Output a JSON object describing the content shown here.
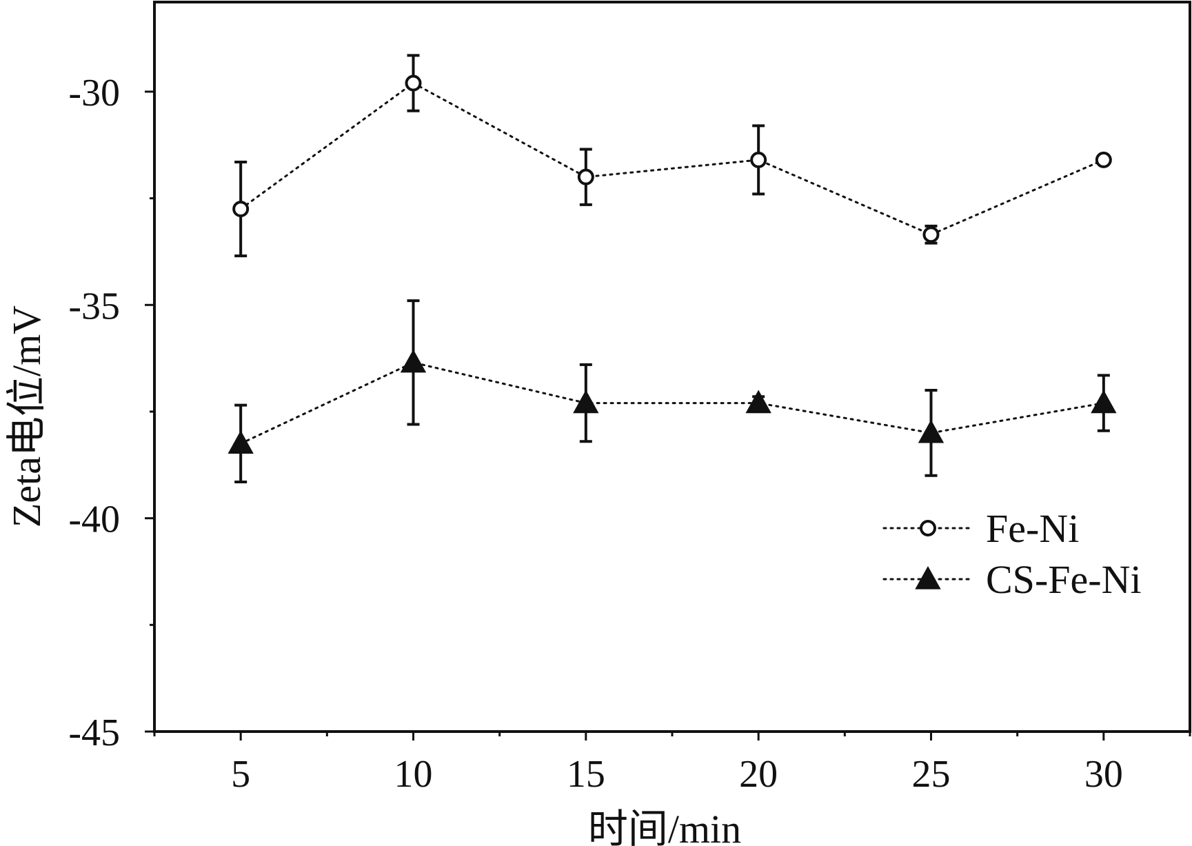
{
  "chart_data": {
    "type": "scatter",
    "title": "",
    "xlabel": "时间/min",
    "ylabel": "Zeta电位/mV",
    "xlim": [
      2.5,
      32.5
    ],
    "ylim": [
      -45,
      -27.9
    ],
    "x_ticks": [
      5,
      10,
      15,
      20,
      25,
      30
    ],
    "x_tick_labels": [
      "5",
      "10",
      "15",
      "20",
      "25",
      "30"
    ],
    "x_minor_ticks": [
      2.5,
      7.5,
      12.5,
      17.5,
      22.5,
      27.5,
      32.5
    ],
    "y_ticks": [
      -30,
      -35,
      -40,
      -45
    ],
    "y_tick_labels": [
      "-30",
      "-35",
      "-40",
      "-45"
    ],
    "y_minor_ticks": [
      -27.5,
      -32.5,
      -37.5,
      -42.5
    ],
    "grid": false,
    "legend_position": "lower-right",
    "series": [
      {
        "name": "Fe-Ni",
        "marker": "open-circle",
        "line_style": "dotted",
        "color": "#111111",
        "x": [
          5,
          10,
          15,
          20,
          25,
          30
        ],
        "y": [
          -32.75,
          -29.8,
          -32.0,
          -31.6,
          -33.35,
          -31.6
        ],
        "error": [
          1.1,
          0.65,
          0.65,
          0.8,
          0.2,
          0.1
        ]
      },
      {
        "name": "CS-Fe-Ni",
        "marker": "filled-triangle",
        "line_style": "dotted",
        "color": "#111111",
        "x": [
          5,
          10,
          15,
          20,
          25,
          30
        ],
        "y": [
          -38.25,
          -36.35,
          -37.3,
          -37.3,
          -38.0,
          -37.3
        ],
        "error": [
          0.9,
          1.45,
          0.9,
          0.15,
          1.0,
          0.65
        ]
      }
    ]
  }
}
